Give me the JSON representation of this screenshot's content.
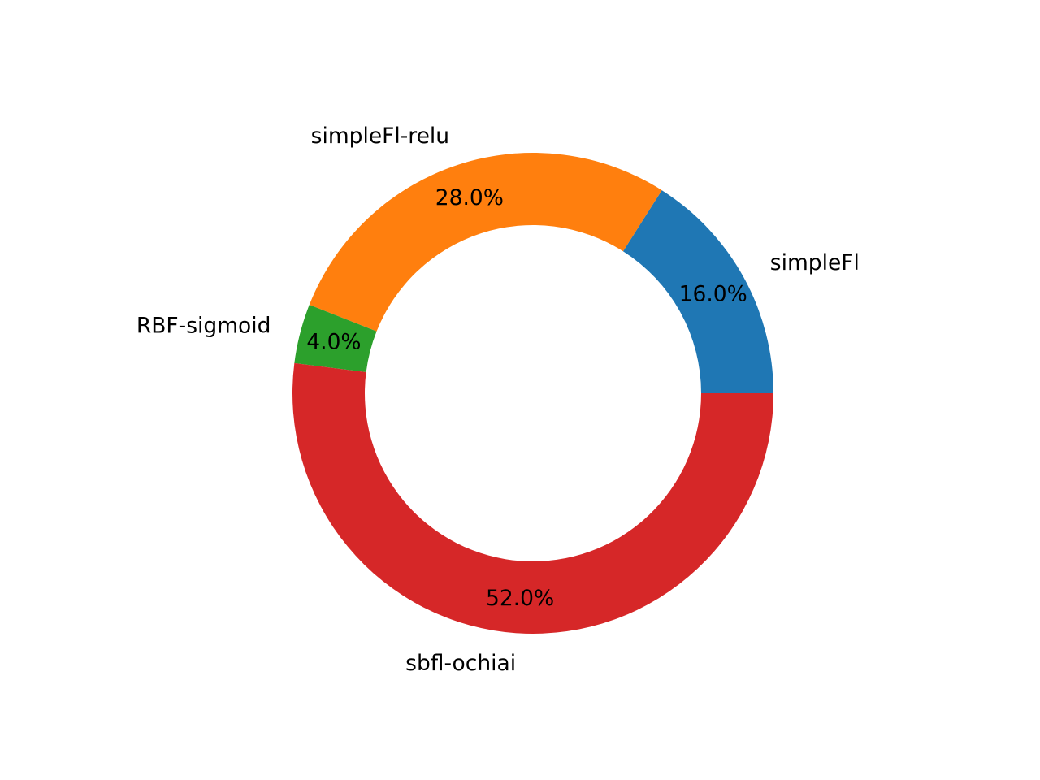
{
  "chart_data": {
    "type": "pie",
    "donut": true,
    "start_angle_deg": 0,
    "direction": "counterclockwise",
    "slices": [
      {
        "label": "simpleFl",
        "value": 16.0,
        "pct_label": "16.0%",
        "color": "#1f77b4"
      },
      {
        "label": "simpleFl-relu",
        "value": 28.0,
        "pct_label": "28.0%",
        "color": "#ff7f0e"
      },
      {
        "label": "RBF-sigmoid",
        "value": 4.0,
        "pct_label": "4.0%",
        "color": "#2ca02c"
      },
      {
        "label": "sbfl-ochiai",
        "value": 52.0,
        "pct_label": "52.0%",
        "color": "#d62728"
      }
    ],
    "title": "",
    "legend": "none"
  }
}
